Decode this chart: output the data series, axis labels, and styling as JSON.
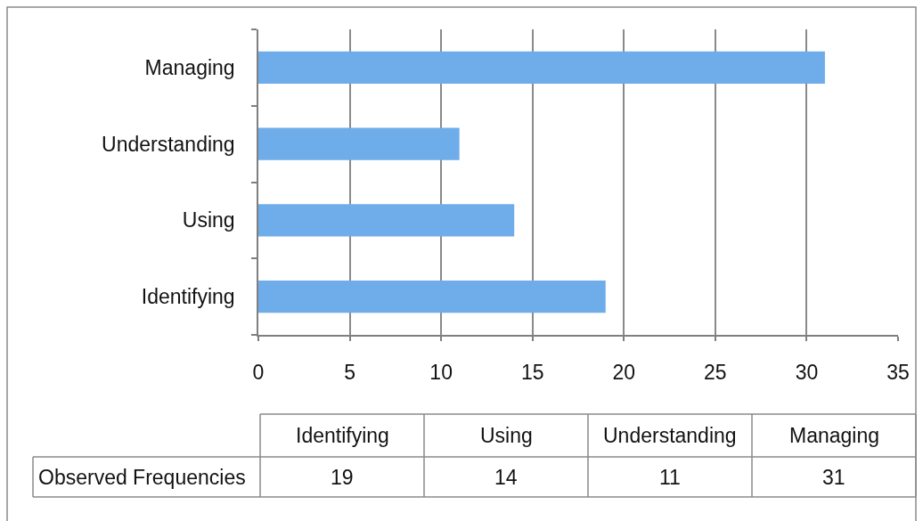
{
  "chart_data": [
    {
      "type": "bar",
      "orientation": "horizontal",
      "categories": [
        "Managing",
        "Understanding",
        "Using",
        "Identifying"
      ],
      "values": [
        31,
        11,
        14,
        19
      ],
      "color": "#6fadea",
      "xlim": [
        0,
        35
      ],
      "xticks": [
        0,
        5,
        10,
        15,
        20,
        25,
        30,
        35
      ],
      "grid": "x"
    },
    {
      "type": "other",
      "categories": [
        "Identifying",
        "Using",
        "Understanding",
        "Managing"
      ],
      "series": [
        {
          "name": "Observed Frequencies",
          "values": [
            19,
            14,
            11,
            31
          ]
        }
      ],
      "data_labels": true
    }
  ]
}
